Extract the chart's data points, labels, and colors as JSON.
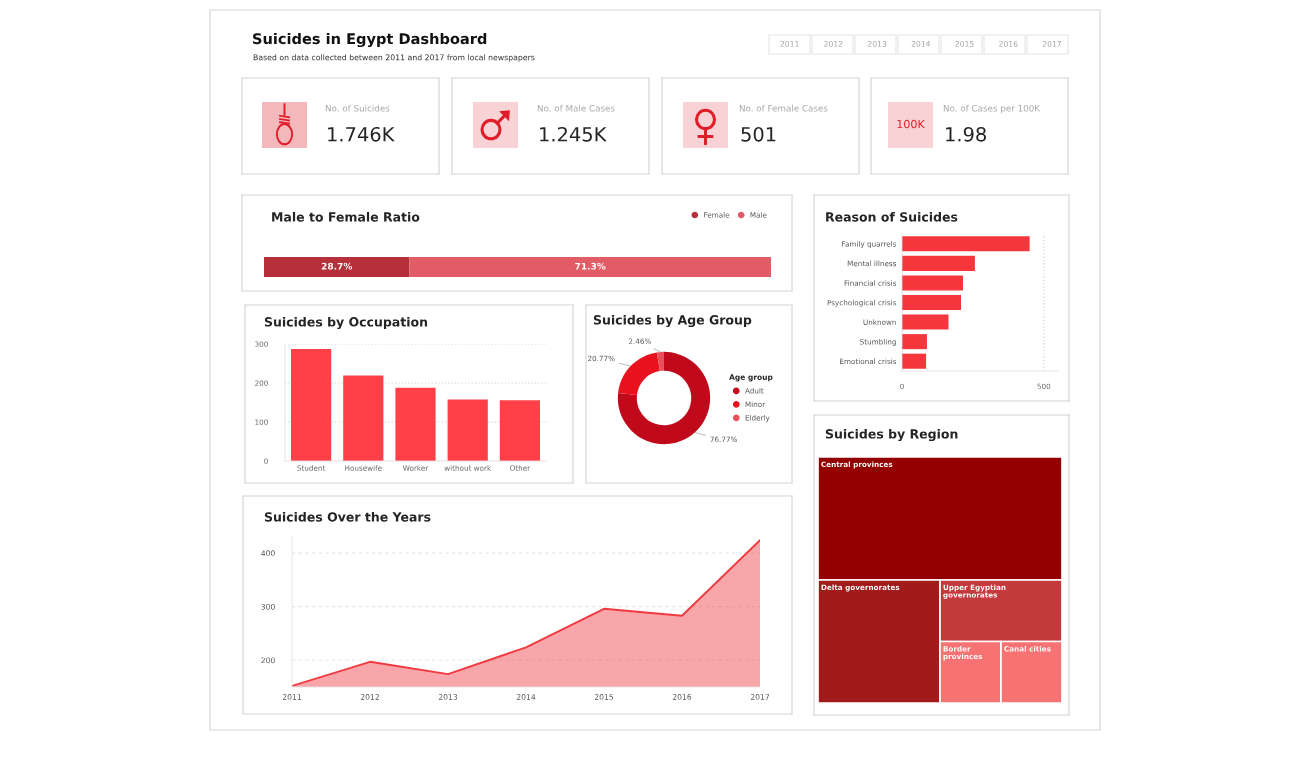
{
  "chart_data": [
    {
      "type": "other",
      "title": "Suicides in Egypt Dashboard",
      "subtitle": "Based on data collected between 2011 and 2017 from local newspapers",
      "annotations": [
        "2011 2012 2013 2014 2015 2016 2017"
      ]
    },
    {
      "type": "other",
      "title": "No. of Suicides",
      "annotations": [
        "1.746K"
      ]
    },
    {
      "type": "other",
      "title": "No. of Male Cases",
      "annotations": [
        "1.245K"
      ]
    },
    {
      "type": "other",
      "title": "No. of Female Cases",
      "annotations": [
        "501"
      ]
    },
    {
      "type": "other",
      "title": "No. of Cases per 100K",
      "annotations": [
        "1.98",
        "100K"
      ]
    },
    {
      "type": "bar",
      "title": "Male to Female Ratio",
      "orientation": "horizontal",
      "stacked": true,
      "categories": [
        null
      ],
      "series": [
        {
          "name": "Female",
          "color": "#b5303a",
          "values": [
            28.7
          ],
          "value_labels": [
            "28.7%"
          ]
        },
        {
          "name": "Male",
          "color": "#e25c66",
          "values": [
            71.3
          ],
          "value_labels": [
            "71.3%"
          ]
        }
      ],
      "legend": "top right",
      "tick_labels": false
    },
    {
      "type": "bar",
      "title": "Reason of Suicides",
      "orientation": "horizontal",
      "categories": [
        "Family quarrels",
        "Mental illness",
        "Financial crisis",
        "Psychological crisis",
        "Unknown",
        "Stumbling",
        "Emotional crisis"
      ],
      "values": [
        450,
        257,
        215,
        208,
        164,
        88,
        85
      ],
      "color": "#f5373d",
      "xlim": [
        0,
        550
      ],
      "xticks": [
        0,
        500
      ],
      "grid": "x"
    },
    {
      "type": "bar",
      "title": "Suicides by Occupation",
      "categories": [
        "Student",
        "Housewife",
        "Worker",
        "without work",
        "Other"
      ],
      "values": [
        287,
        219,
        188,
        158,
        156
      ],
      "color": "#ff4049",
      "ylim": [
        0,
        300
      ],
      "yticks": [
        0,
        100,
        200,
        300
      ],
      "grid": "y"
    },
    {
      "type": "donut",
      "title": "Suicides by Age Group",
      "legend_title": "Age group",
      "categories": [
        "Adult",
        "Minor",
        "Elderly"
      ],
      "values": [
        76.77,
        20.77,
        2.46
      ],
      "value_labels": [
        "76.77%",
        "20.77%",
        "2.46%"
      ],
      "colors": [
        "#c00a1b",
        "#e8121f",
        "#e9505c"
      ],
      "legend": "right"
    },
    {
      "type": "other",
      "title": "Suicides by Region",
      "categories": [
        "Central provinces",
        "Delta governorates",
        "Upper Egyptian governorates",
        "Border provinces",
        "Canal cities"
      ],
      "colors": [
        "#940000",
        "#a31a1b",
        "#c4393c",
        "#f77272",
        "#f77272"
      ]
    },
    {
      "type": "area",
      "title": "Suicides Over the Years",
      "categories": [
        "2011",
        "2012",
        "2013",
        "2014",
        "2015",
        "2016",
        "2017"
      ],
      "values": [
        152,
        197,
        174,
        224,
        296,
        283,
        424
      ],
      "color": "#f03a40",
      "ylim": [
        150,
        430
      ],
      "yticks": [
        200,
        300,
        400
      ],
      "grid": "y"
    }
  ]
}
